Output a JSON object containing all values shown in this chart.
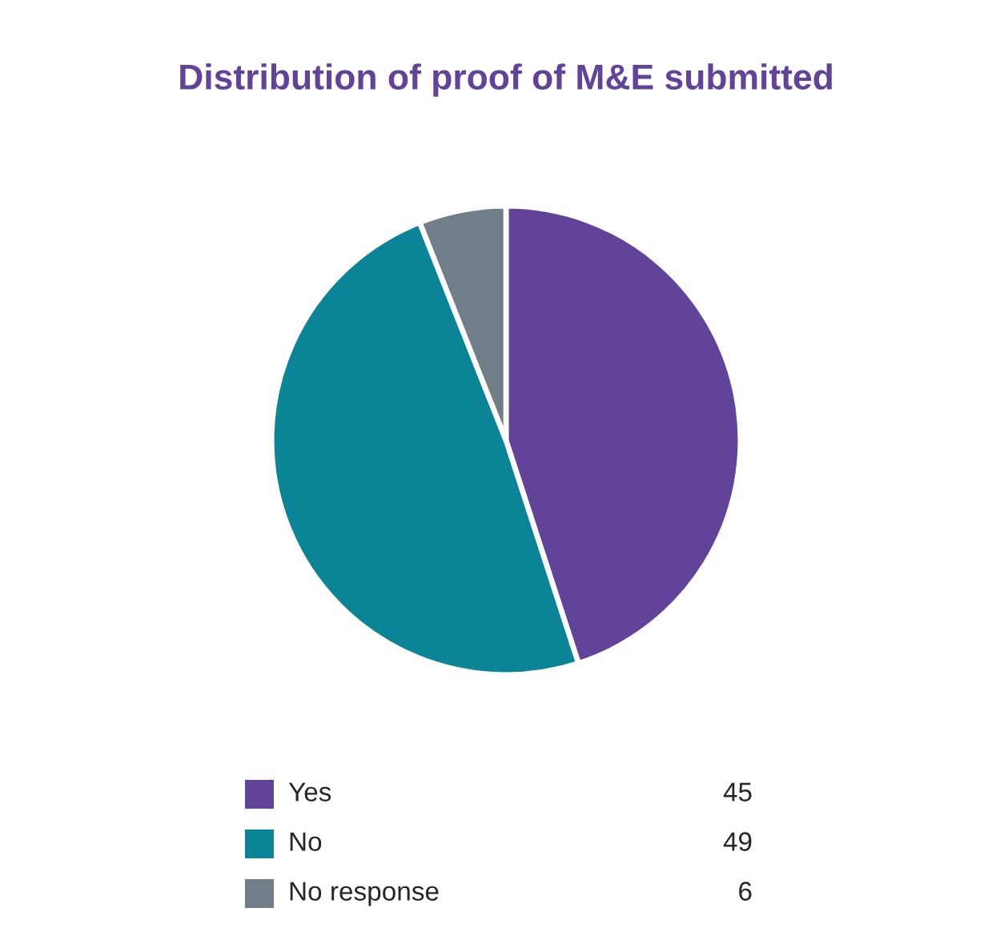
{
  "chart_data": {
    "type": "pie",
    "title": "Distribution of proof of M&E submitted",
    "categories": [
      "Yes",
      "No",
      "No response"
    ],
    "values": [
      45,
      49,
      6
    ],
    "colors": [
      "#61439a",
      "#0b8497",
      "#717e89"
    ],
    "data_labels": true,
    "legend": "bottom"
  }
}
